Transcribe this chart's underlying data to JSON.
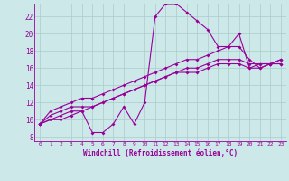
{
  "bg_color": "#cce8e8",
  "line_color": "#990099",
  "grid_color": "#aacccc",
  "xlabel": "Windchill (Refroidissement éolien,°C)",
  "ylabel_ticks": [
    8,
    10,
    12,
    14,
    16,
    18,
    20,
    22
  ],
  "xlabel_ticks": [
    0,
    1,
    2,
    3,
    4,
    5,
    6,
    7,
    8,
    9,
    10,
    11,
    12,
    13,
    14,
    15,
    16,
    17,
    18,
    19,
    20,
    21,
    22,
    23
  ],
  "xlim": [
    -0.5,
    23.5
  ],
  "ylim": [
    7.5,
    23.5
  ],
  "series": [
    [
      9.5,
      10.0,
      10.5,
      11.0,
      11.0,
      8.5,
      8.5,
      9.5,
      11.5,
      9.5,
      12.0,
      22.0,
      23.5,
      23.5,
      22.5,
      21.5,
      20.5,
      18.5,
      18.5,
      20.0,
      16.0,
      16.5,
      16.5,
      16.5
    ],
    [
      9.5,
      10.0,
      10.0,
      10.5,
      11.0,
      11.5,
      12.0,
      12.5,
      13.0,
      13.5,
      14.0,
      14.5,
      15.0,
      15.5,
      15.5,
      15.5,
      16.0,
      16.5,
      16.5,
      16.5,
      16.0,
      16.0,
      16.5,
      16.5
    ],
    [
      9.5,
      10.5,
      11.0,
      11.5,
      11.5,
      11.5,
      12.0,
      12.5,
      13.0,
      13.5,
      14.0,
      14.5,
      15.0,
      15.5,
      16.0,
      16.0,
      16.5,
      17.0,
      17.0,
      17.0,
      16.5,
      16.5,
      16.5,
      17.0
    ],
    [
      9.5,
      11.0,
      11.5,
      12.0,
      12.5,
      12.5,
      13.0,
      13.5,
      14.0,
      14.5,
      15.0,
      15.5,
      16.0,
      16.5,
      17.0,
      17.0,
      17.5,
      18.0,
      18.5,
      18.5,
      17.0,
      16.0,
      16.5,
      17.0
    ]
  ]
}
